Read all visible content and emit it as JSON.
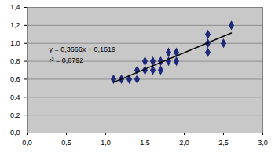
{
  "chart_data": {
    "type": "scatter",
    "series": [
      {
        "type": "scatter",
        "color": "#1f2a7a",
        "marker": "diamond",
        "x": [
          1.1,
          1.2,
          1.3,
          1.4,
          1.4,
          1.5,
          1.5,
          1.6,
          1.6,
          1.7,
          1.7,
          1.8,
          1.8,
          1.9,
          1.9,
          2.3,
          2.3,
          2.3,
          2.5,
          2.6
        ],
        "values": [
          0.6,
          0.6,
          0.6,
          0.6,
          0.7,
          0.7,
          0.8,
          0.7,
          0.8,
          0.7,
          0.8,
          0.8,
          0.9,
          0.8,
          0.9,
          0.9,
          1.0,
          1.1,
          1.0,
          1.2
        ]
      },
      {
        "type": "line",
        "color": "#000000",
        "line_style": "solid",
        "x": [
          1.1,
          2.6
        ],
        "values": [
          0.5652,
          1.1151
        ]
      }
    ],
    "annotations": [
      "y = 0,3666x + 0,1619",
      "r² = 0,8792"
    ],
    "xlim": [
      0,
      3
    ],
    "xticks": [
      {
        "value": 0,
        "label": "0,0"
      },
      {
        "value": 0.5,
        "label": "0,5"
      },
      {
        "value": 1,
        "label": "1,0"
      },
      {
        "value": 1.5,
        "label": "1,5"
      },
      {
        "value": 2,
        "label": "2,0"
      },
      {
        "value": 2.5,
        "label": "2,5"
      },
      {
        "value": 3,
        "label": "3,0"
      }
    ],
    "ylim": [
      0,
      1.4
    ],
    "yticks": [
      {
        "value": 0,
        "label": "0,0"
      },
      {
        "value": 0.2,
        "label": "0,2"
      },
      {
        "value": 0.4,
        "label": "0,4"
      },
      {
        "value": 0.6,
        "label": "0,6"
      },
      {
        "value": 0.8,
        "label": "0,8"
      },
      {
        "value": 1,
        "label": "1,0"
      },
      {
        "value": 1.2,
        "label": "1,2"
      },
      {
        "value": 1.4,
        "label": "1,4"
      }
    ],
    "grid": true
  }
}
